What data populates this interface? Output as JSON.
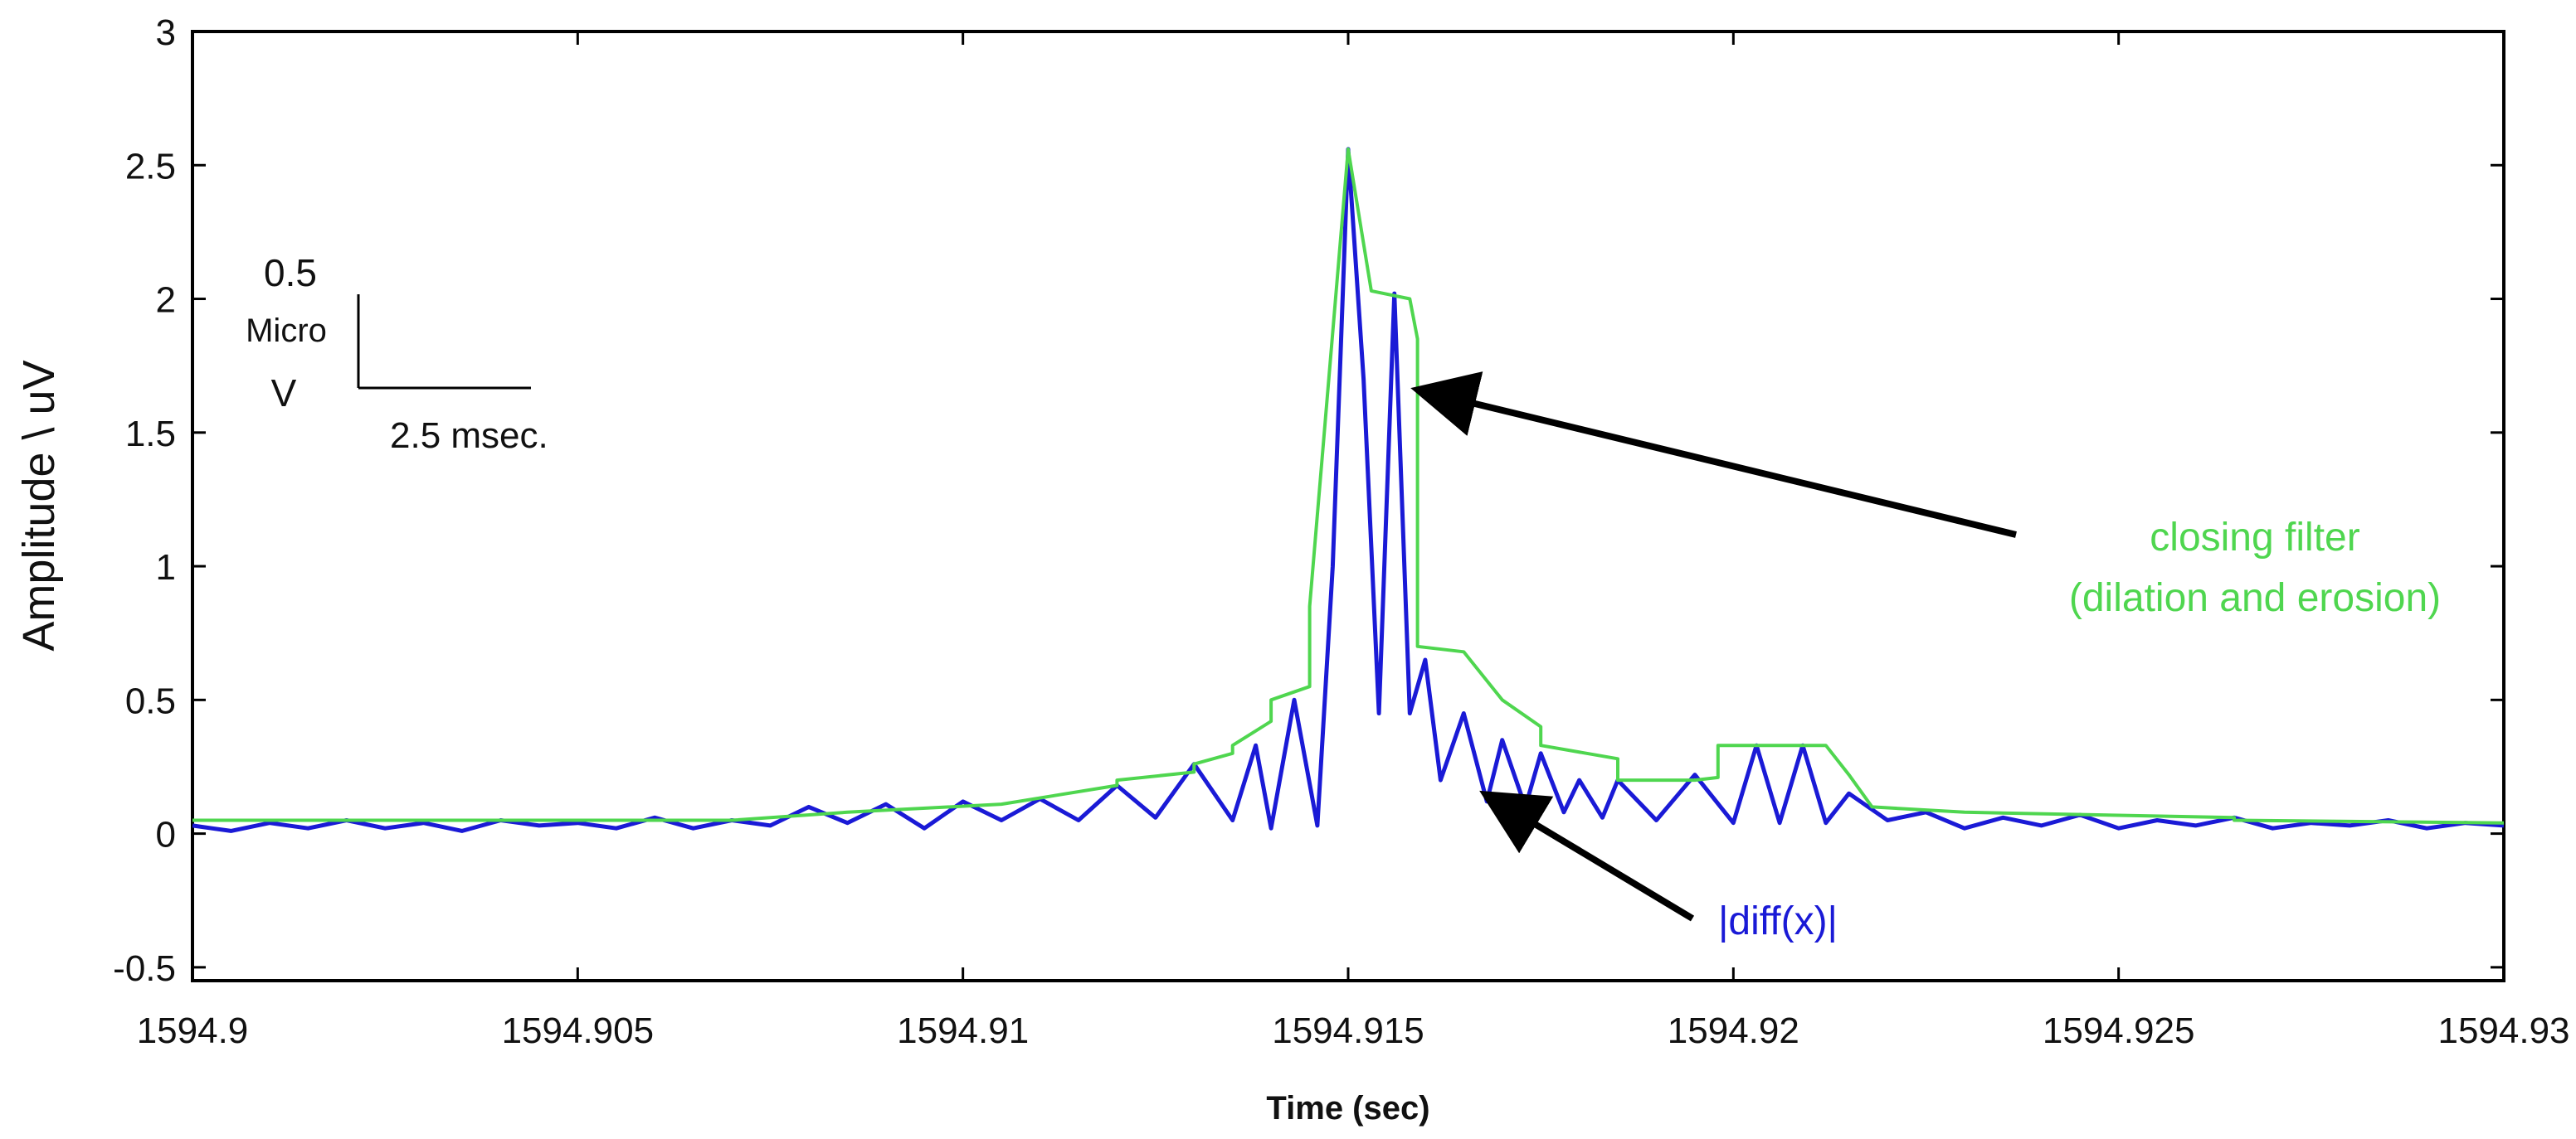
{
  "chart_data": {
    "type": "line",
    "title": "",
    "xlabel": "Time (sec)",
    "ylabel": "Amplitude \\ uV",
    "xlim": [
      1594.9,
      1594.93
    ],
    "ylim": [
      -0.55,
      3.0
    ],
    "grid": false,
    "x_ticks": [
      1594.9,
      1594.905,
      1594.91,
      1594.915,
      1594.92,
      1594.925,
      1594.93
    ],
    "x_tick_labels": [
      "1594.9",
      "1594.905",
      "1594.91",
      "1594.915",
      "1594.92",
      "1594.925",
      "1594.93"
    ],
    "y_ticks": [
      -0.5,
      0,
      0.5,
      1,
      1.5,
      2,
      2.5,
      3
    ],
    "y_tick_labels": [
      "-0.5",
      "0",
      "0.5",
      "1",
      "1.5",
      "2",
      "2.5",
      "3"
    ],
    "series": [
      {
        "color": "#1a1ad6",
        "x": [
          1594.9,
          1594.9005,
          1594.901,
          1594.9015,
          1594.902,
          1594.9025,
          1594.903,
          1594.9035,
          1594.904,
          1594.9045,
          1594.905,
          1594.9055,
          1594.906,
          1594.9065,
          1594.907,
          1594.9075,
          1594.908,
          1594.9085,
          1594.909,
          1594.9095,
          1594.91,
          1594.9105,
          1594.911,
          1594.9115,
          1594.912,
          1594.9125,
          1594.913,
          1594.9135,
          1594.9138,
          1594.914,
          1594.9143,
          1594.9146,
          1594.9148,
          1594.915,
          1594.9152,
          1594.9154,
          1594.9156,
          1594.9158,
          1594.916,
          1594.9162,
          1594.9165,
          1594.9168,
          1594.917,
          1594.9173,
          1594.9175,
          1594.9178,
          1594.918,
          1594.9183,
          1594.9185,
          1594.919,
          1594.9195,
          1594.92,
          1594.9203,
          1594.9206,
          1594.9209,
          1594.9212,
          1594.9215,
          1594.922,
          1594.9225,
          1594.923,
          1594.9235,
          1594.924,
          1594.9245,
          1594.925,
          1594.9255,
          1594.926,
          1594.9265,
          1594.927,
          1594.9275,
          1594.928,
          1594.9285,
          1594.929,
          1594.9295,
          1594.93
        ],
        "y": [
          0.03,
          0.01,
          0.04,
          0.02,
          0.05,
          0.02,
          0.04,
          0.01,
          0.05,
          0.03,
          0.04,
          0.02,
          0.06,
          0.02,
          0.05,
          0.03,
          0.1,
          0.04,
          0.11,
          0.02,
          0.12,
          0.05,
          0.13,
          0.05,
          0.18,
          0.06,
          0.26,
          0.05,
          0.33,
          0.02,
          0.5,
          0.03,
          1.0,
          2.56,
          1.7,
          0.45,
          2.02,
          0.45,
          0.65,
          0.2,
          0.45,
          0.12,
          0.35,
          0.1,
          0.3,
          0.08,
          0.2,
          0.06,
          0.2,
          0.05,
          0.22,
          0.04,
          0.33,
          0.04,
          0.33,
          0.04,
          0.15,
          0.05,
          0.08,
          0.02,
          0.06,
          0.03,
          0.07,
          0.02,
          0.05,
          0.03,
          0.06,
          0.02,
          0.04,
          0.03,
          0.05,
          0.02,
          0.04,
          0.03
        ]
      },
      {
        "color": "#4fd64f",
        "x": [
          1594.9,
          1594.907,
          1594.9085,
          1594.9085,
          1594.9105,
          1594.9105,
          1594.912,
          1594.912,
          1594.913,
          1594.913,
          1594.9135,
          1594.9135,
          1594.914,
          1594.914,
          1594.9145,
          1594.9145,
          1594.915,
          1594.9153,
          1594.9153,
          1594.9158,
          1594.9159,
          1594.9159,
          1594.9165,
          1594.917,
          1594.9175,
          1594.9175,
          1594.9185,
          1594.9185,
          1594.9195,
          1594.9198,
          1594.9198,
          1594.9212,
          1594.9215,
          1594.9218,
          1594.923,
          1594.923,
          1594.9265,
          1594.9265,
          1594.93
        ],
        "y": [
          0.05,
          0.05,
          0.08,
          0.08,
          0.11,
          0.11,
          0.18,
          0.2,
          0.23,
          0.26,
          0.3,
          0.33,
          0.42,
          0.5,
          0.55,
          0.85,
          2.56,
          2.03,
          2.03,
          2.0,
          1.85,
          0.7,
          0.68,
          0.5,
          0.4,
          0.33,
          0.28,
          0.2,
          0.2,
          0.21,
          0.33,
          0.33,
          0.22,
          0.1,
          0.08,
          0.08,
          0.06,
          0.05,
          0.04
        ]
      }
    ],
    "annotations": [
      {
        "text": "closing filter",
        "color": "#4fd64f",
        "target": [
          1594.9159,
          1.67
        ]
      },
      {
        "text": "(dilation and erosion)",
        "color": "#4fd64f"
      },
      {
        "text": "|diff(x)|",
        "color": "#1a1ad6",
        "target": [
          1594.9168,
          0.15
        ]
      }
    ],
    "scale_bar": {
      "y_value": "0.5",
      "y_unit_line1": "Micro",
      "y_unit_line2": "V",
      "x_label": "2.5 msec."
    }
  }
}
